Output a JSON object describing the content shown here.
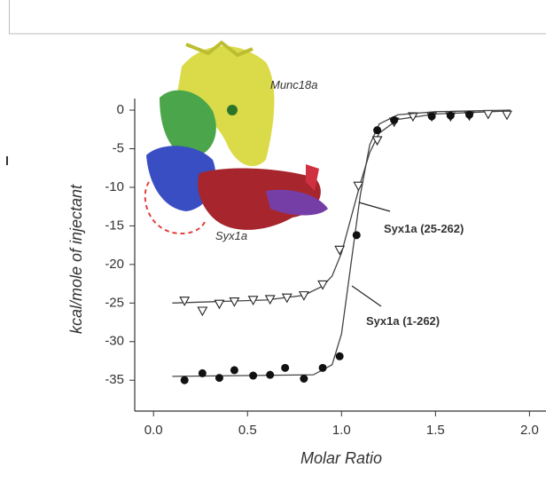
{
  "chart_data": {
    "type": "scatter",
    "x_label": "Molar Ratio",
    "y_label": "kcal/mole of injectant",
    "xlim": [
      -0.1,
      2.05
    ],
    "ylim": [
      -39,
      1.5
    ],
    "xticks": [
      {
        "value": 0,
        "label": "0.0"
      },
      {
        "value": 0.5,
        "label": "0.5"
      },
      {
        "value": 1,
        "label": "1.0"
      },
      {
        "value": 1.5,
        "label": "1.5"
      },
      {
        "value": 2,
        "label": "2.0"
      }
    ],
    "yticks": [
      0,
      -5,
      -10,
      -15,
      -20,
      -25,
      -30,
      -35
    ],
    "inset_labels": [
      "Munc18a",
      "Syx1a"
    ],
    "series": [
      {
        "name": "Syx1a (25-262)",
        "marker": "triangle-down",
        "color": "#222222",
        "x": [
          0.165,
          0.26,
          0.35,
          0.43,
          0.53,
          0.62,
          0.71,
          0.8,
          0.9,
          0.99,
          1.09,
          1.19,
          1.28,
          1.38,
          1.48,
          1.58,
          1.68,
          1.78,
          1.88
        ],
        "values": [
          -24.7,
          -26.0,
          -25.1,
          -24.8,
          -24.6,
          -24.5,
          -24.3,
          -24.0,
          -22.6,
          -18.1,
          -9.8,
          -3.9,
          -1.5,
          -0.8,
          -0.8,
          -0.8,
          -0.7,
          -0.5,
          -0.6
        ],
        "fit_x": [
          0.1,
          0.6,
          0.8,
          0.9,
          0.95,
          1.0,
          1.05,
          1.1,
          1.15,
          1.2,
          1.3,
          1.5,
          1.9
        ],
        "fit_values": [
          -25,
          -24.6,
          -24.0,
          -22.8,
          -21.5,
          -18.5,
          -14,
          -9.5,
          -5.5,
          -3,
          -1.2,
          -0.5,
          -0.1
        ]
      },
      {
        "name": "Syx1a (1-262)",
        "marker": "circle",
        "color": "#111111",
        "x": [
          0.165,
          0.26,
          0.35,
          0.43,
          0.53,
          0.62,
          0.7,
          0.8,
          0.9,
          0.99,
          1.08,
          1.19,
          1.28,
          1.48,
          1.58,
          1.68
        ],
        "values": [
          -35.0,
          -34.1,
          -34.7,
          -33.7,
          -34.4,
          -34.3,
          -33.4,
          -34.8,
          -33.4,
          -31.9,
          -16.2,
          -2.6,
          -1.3,
          -0.8,
          -0.7,
          -0.6
        ],
        "fit_x": [
          0.1,
          0.85,
          0.95,
          1.0,
          1.05,
          1.1,
          1.15,
          1.2,
          1.3,
          1.5,
          1.9
        ],
        "fit_values": [
          -34.5,
          -34.3,
          -33,
          -29,
          -20,
          -11,
          -4.5,
          -1.8,
          -0.6,
          -0.2,
          0
        ]
      }
    ]
  }
}
